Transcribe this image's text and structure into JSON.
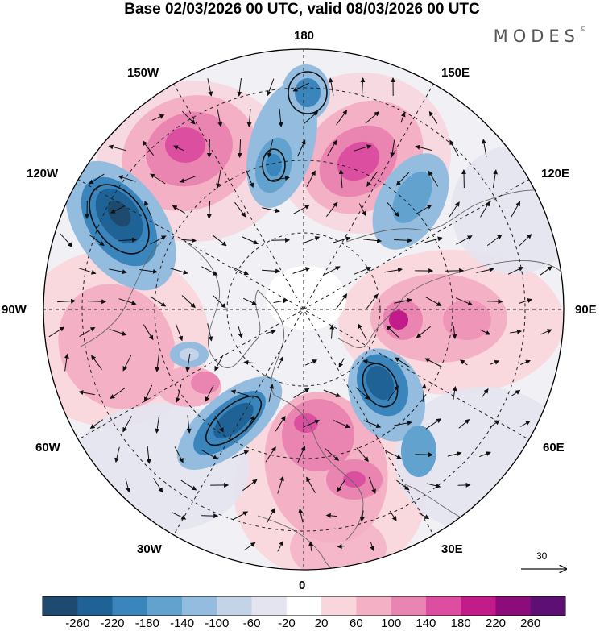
{
  "title": "Base 02/03/2026 00 UTC, valid 08/03/2026 00 UTC",
  "brand": "MODES",
  "brand_mark": "©",
  "longitude_labels": {
    "top": "180",
    "bottom": "0",
    "left": "90W",
    "right": "90E",
    "upper_left_1": "150W",
    "upper_left_2": "120W",
    "upper_right_1": "150E",
    "upper_right_2": "120E",
    "lower_left_1": "60W",
    "lower_left_2": "30W",
    "lower_right_1": "60E",
    "lower_right_2": "30E"
  },
  "reference_vector": "30",
  "colorbar": {
    "ticks": [
      "-260",
      "-220",
      "-180",
      "-140",
      "-100",
      "-60",
      "-20",
      "20",
      "60",
      "100",
      "140",
      "180",
      "220",
      "260"
    ],
    "colors": [
      "#1d4a6e",
      "#1f6295",
      "#3b85bd",
      "#62a2cf",
      "#94bcdf",
      "#c4d3e8",
      "#e4e4f0",
      "#ffffff",
      "#f9d5dc",
      "#f4b0c4",
      "#ea84b1",
      "#dc4fa0",
      "#c21b8a",
      "#8b0d7b",
      "#5d0f74"
    ]
  },
  "colors": {
    "coast": "#666666",
    "grid": "#222222",
    "arrows": "#111111"
  }
}
